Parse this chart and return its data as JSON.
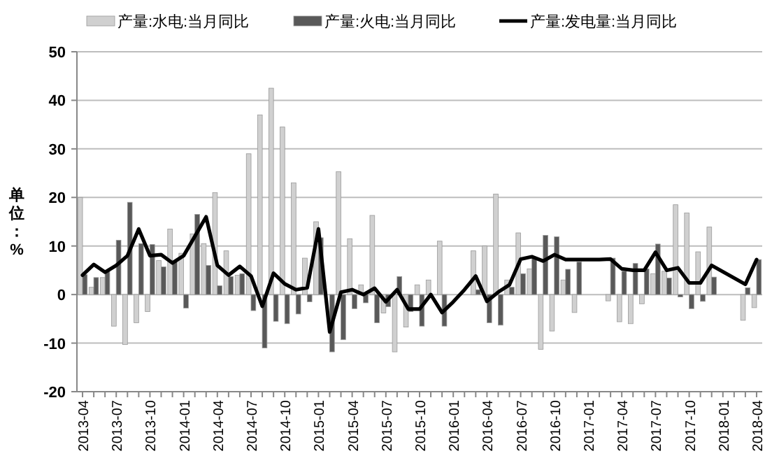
{
  "chart_data": {
    "type": "bar",
    "categories": [
      "2013-04",
      null,
      null,
      "2013-07",
      null,
      null,
      "2013-10",
      null,
      null,
      "2014-01",
      null,
      null,
      "2014-04",
      null,
      null,
      "2014-07",
      null,
      null,
      "2014-10",
      null,
      null,
      "2015-01",
      null,
      null,
      "2015-04",
      null,
      null,
      "2015-07",
      null,
      null,
      "2015-10",
      null,
      null,
      "2016-01",
      null,
      null,
      "2016-04",
      null,
      null,
      "2016-07",
      null,
      null,
      "2016-10",
      null,
      null,
      "2017-01",
      null,
      null,
      "2017-04",
      null,
      null,
      "2017-07",
      null,
      null,
      "2017-10",
      null,
      null,
      "2018-01",
      null,
      null,
      "2018-04"
    ],
    "series": [
      {
        "name": "产量:水电:当月同比",
        "color": "#d0d0d0",
        "values": [
          20,
          1.5,
          3.5,
          -6.5,
          -10.3,
          -5.8,
          -3.5,
          7,
          13.5,
          8.5,
          12.5,
          10.5,
          21,
          9,
          4,
          29,
          37,
          42.5,
          34.5,
          23,
          7.5,
          15,
          null,
          25.3,
          11.5,
          2,
          16.3,
          -3.8,
          -11.8,
          -6.7,
          2,
          3,
          11,
          null,
          null,
          9,
          10,
          20.7,
          3,
          12.7,
          5.3,
          -11.3,
          -7.5,
          3,
          -3.7,
          null,
          null,
          -1.3,
          -5.6,
          -6,
          -1.9,
          4.3,
          4.8,
          18.5,
          16.8,
          8.8,
          13.9,
          null,
          null,
          -5.3,
          -2.7
        ]
      },
      {
        "name": "产量:火电:当月同比",
        "color": "#595959",
        "values": [
          4.1,
          3.5,
          4.8,
          11.2,
          19,
          10.5,
          10.3,
          5.7,
          6.8,
          -2.8,
          16.5,
          6,
          1.8,
          3.7,
          4.3,
          -3.3,
          -11,
          -5.5,
          -6,
          -4,
          -1.5,
          11.7,
          -11.8,
          -9.3,
          -2.9,
          -1.7,
          -5.8,
          -2.5,
          3.7,
          -3.5,
          -6.5,
          null,
          -6.5,
          null,
          null,
          1,
          -5.8,
          -6.3,
          1.5,
          4.3,
          7.6,
          12.2,
          11.9,
          5.2,
          6.7,
          null,
          null,
          7.5,
          4.8,
          6.4,
          5.3,
          10.4,
          3.4,
          -0.5,
          -2.9,
          -1.4,
          3.6,
          null,
          null,
          1.4,
          7.2
        ]
      },
      {
        "name": "产量:发电量:当月同比",
        "type": "line",
        "color": "#000000",
        "values": [
          4,
          6.2,
          4.6,
          6,
          8,
          13.5,
          8,
          8.2,
          6.5,
          8,
          12,
          16,
          6,
          4,
          5.8,
          3.8,
          -2.4,
          4.4,
          2.2,
          1,
          1.4,
          13.5,
          -7.7,
          0.5,
          1,
          0,
          1.3,
          -1.5,
          1,
          -3,
          -3,
          0,
          -3.7,
          -1.5,
          1,
          3.8,
          -1.4,
          0.5,
          2,
          7.3,
          7.8,
          6.9,
          8.2,
          7.2,
          7.2,
          7.2,
          7.2,
          7.3,
          5.3,
          5,
          5,
          8.7,
          5,
          5.5,
          2.4,
          2.4,
          6,
          null,
          null,
          2.1,
          7.2
        ]
      }
    ],
    "ylabel": "单位：%",
    "ylim": [
      -20,
      50
    ],
    "yticks": [
      -20,
      -10,
      0,
      10,
      20,
      30,
      40,
      50
    ],
    "grid": "y",
    "legend": "top",
    "marker": "none",
    "line_style": "solid"
  }
}
